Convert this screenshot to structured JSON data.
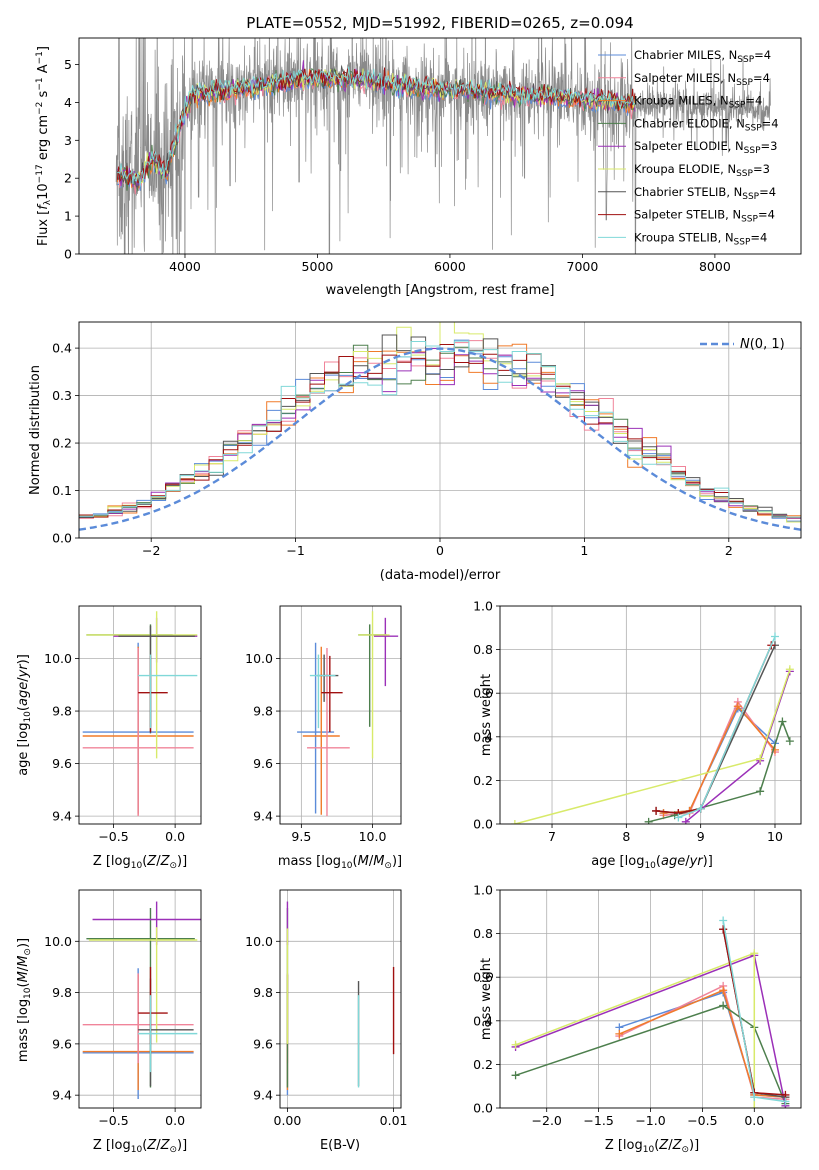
{
  "figure": {
    "title": "PLATE=0552, MJD=51992, FIBERID=0265, z=0.094"
  },
  "colors": {
    "Chabrier MILES": "#5b8bd9",
    "Salpeter MILES": "#f0849a",
    "Kroupa MILES": "#f07b2a",
    "Chabrier ELODIE": "#4d7f4d",
    "Salpeter ELODIE": "#9b30b8",
    "Kroupa ELODIE": "#d8ea6a",
    "Chabrier STELIB": "#555555",
    "Salpeter STELIB": "#a01010",
    "Kroupa STELIB": "#80d8d8"
  },
  "chart_data": [
    {
      "id": "spectrum",
      "type": "line",
      "xlabel": "wavelength [Angstrom, rest frame]",
      "ylabel": "Flux [f_λ 10^-17 erg cm^-2 s^-1 A^-1]",
      "xlim": [
        3200,
        8650
      ],
      "ylim": [
        0,
        5.7
      ],
      "xticks": [
        "4000",
        "5000",
        "6000",
        "7000",
        "8000"
      ],
      "yticks": [
        "0",
        "1",
        "2",
        "3",
        "4",
        "5"
      ],
      "grid": false,
      "legend_position": "right",
      "legend": [
        {
          "model": "Chabrier MILES",
          "text": "Chabrier MILES, N_SSP=4"
        },
        {
          "model": "Salpeter MILES",
          "text": "Salpeter MILES, N_SSP=4"
        },
        {
          "model": "Kroupa MILES",
          "text": "Kroupa MILES, N_SSP=4"
        },
        {
          "model": "Chabrier ELODIE",
          "text": "Chabrier ELODIE, N_SSP=4"
        },
        {
          "model": "Salpeter ELODIE",
          "text": "Salpeter ELODIE, N_SSP=3"
        },
        {
          "model": "Kroupa ELODIE",
          "text": "Kroupa ELODIE, N_SSP=3"
        },
        {
          "model": "Chabrier STELIB",
          "text": "Chabrier STELIB, N_SSP=4"
        },
        {
          "model": "Salpeter STELIB",
          "text": "Salpeter STELIB, N_SSP=4"
        },
        {
          "model": "Kroupa STELIB",
          "text": "Kroupa STELIB, N_SSP=4"
        }
      ],
      "continuum": [
        [
          3500,
          2.2
        ],
        [
          3650,
          2.0
        ],
        [
          3750,
          2.6
        ],
        [
          3850,
          2.2
        ],
        [
          3950,
          3.3
        ],
        [
          4050,
          4.2
        ],
        [
          4200,
          4.25
        ],
        [
          4400,
          4.35
        ],
        [
          4700,
          4.5
        ],
        [
          5000,
          4.65
        ],
        [
          5300,
          4.6
        ],
        [
          5600,
          4.45
        ],
        [
          5900,
          4.35
        ],
        [
          6200,
          4.3
        ],
        [
          6500,
          4.2
        ],
        [
          6800,
          4.15
        ],
        [
          7100,
          4.05
        ],
        [
          7400,
          3.95
        ],
        [
          7700,
          3.95
        ],
        [
          8000,
          3.85
        ],
        [
          8400,
          3.75
        ]
      ],
      "model_fill_end": 7400,
      "absorption_dips": [
        [
          3934,
          0.4
        ],
        [
          3969,
          0.6
        ],
        [
          4102,
          1.5
        ],
        [
          4340,
          1.8
        ],
        [
          4861,
          1.9
        ],
        [
          5090,
          0.0
        ],
        [
          5175,
          2.2
        ],
        [
          5890,
          2.3
        ],
        [
          6563,
          2.0
        ],
        [
          7180,
          0.9
        ],
        [
          7400,
          0.0
        ]
      ]
    },
    {
      "id": "residuals",
      "type": "histogram",
      "xlabel": "(data-model)/error",
      "ylabel": "Normed distribution",
      "xlim": [
        -2.5,
        2.5
      ],
      "ylim": [
        0,
        0.455
      ],
      "xticks": [
        "-2",
        "-1",
        "0",
        "1",
        "2"
      ],
      "yticks": [
        "0.0",
        "0.1",
        "0.2",
        "0.3",
        "0.4"
      ],
      "grid": true,
      "legend_position": "upper right",
      "reference_label": "N(0,1)",
      "bin_width": 0.1,
      "bin_range": [
        -2.5,
        2.5
      ]
    },
    {
      "id": "age-vs-Z",
      "type": "errorbar",
      "xlabel": "Z [log10(Z/Z☉)]",
      "ylabel": "age [log10(age/yr)]",
      "xlim": [
        -0.78,
        0.21
      ],
      "ylim": [
        9.37,
        10.2
      ],
      "xticks": [
        "-0.5",
        "0.0"
      ],
      "yticks": [
        "9.4",
        "9.6",
        "9.8",
        "10.0"
      ],
      "grid": true,
      "bars": [
        {
          "model": "Chabrier MILES",
          "x": -0.3,
          "xerr": [
            0.45,
            0.45
          ],
          "y": 9.72,
          "yerr": [
            0.31,
            0.34
          ]
        },
        {
          "model": "Kroupa MILES",
          "x": -0.3,
          "xerr": [
            0.45,
            0.45
          ],
          "y": 9.705,
          "yerr": [
            0.3,
            0.34
          ]
        },
        {
          "model": "Salpeter MILES",
          "x": -0.3,
          "xerr": [
            0.45,
            0.45
          ],
          "y": 9.66,
          "yerr": [
            0.26,
            0.38
          ]
        },
        {
          "model": "Chabrier ELODIE",
          "x": -0.2,
          "xerr": [
            0.52,
            0.18
          ],
          "y": 10.09,
          "yerr": [
            0.35,
            0.04
          ]
        },
        {
          "model": "Salpeter ELODIE",
          "x": -0.15,
          "xerr": [
            0.35,
            0.33
          ],
          "y": 10.085,
          "yerr": [
            0.1,
            0.07
          ]
        },
        {
          "model": "Kroupa ELODIE",
          "x": -0.15,
          "xerr": [
            0.57,
            0.33
          ],
          "y": 10.09,
          "yerr": [
            0.47,
            0.09
          ]
        },
        {
          "model": "Chabrier STELIB",
          "x": -0.2,
          "xerr": [
            0.26,
            0.36
          ],
          "y": 10.085,
          "yerr": [
            0.37,
            0.04
          ]
        },
        {
          "model": "Salpeter STELIB",
          "x": -0.2,
          "xerr": [
            0.1,
            0.14
          ],
          "y": 9.87,
          "yerr": [
            0.15,
            0.14
          ]
        },
        {
          "model": "Kroupa STELIB",
          "x": -0.2,
          "xerr": [
            0.1,
            0.38
          ],
          "y": 9.935,
          "yerr": [
            0.2,
            0.08
          ]
        }
      ]
    },
    {
      "id": "age-vs-mass",
      "type": "errorbar",
      "xlabel": "mass [log10(M/M☉)]",
      "ylabel": "",
      "xlim": [
        9.35,
        10.2
      ],
      "ylim": [
        9.37,
        10.2
      ],
      "xticks": [
        "9.5",
        "10.0"
      ],
      "yticks": [
        "9.4",
        "9.6",
        "9.8",
        "10.0"
      ],
      "grid": true,
      "bars": [
        {
          "model": "Chabrier MILES",
          "x": 9.6,
          "xerr": [
            0.13,
            0.13
          ],
          "y": 9.72,
          "yerr": [
            0.31,
            0.34
          ]
        },
        {
          "model": "Kroupa MILES",
          "x": 9.64,
          "xerr": [
            0.13,
            0.13
          ],
          "y": 9.705,
          "yerr": [
            0.3,
            0.34
          ]
        },
        {
          "model": "Salpeter MILES",
          "x": 9.68,
          "xerr": [
            0.14,
            0.16
          ],
          "y": 9.66,
          "yerr": [
            0.26,
            0.38
          ]
        },
        {
          "model": "Chabrier ELODIE",
          "x": 9.98,
          "xerr": [
            0.08,
            0.12
          ],
          "y": 10.09,
          "yerr": [
            0.35,
            0.04
          ]
        },
        {
          "model": "Salpeter ELODIE",
          "x": 10.09,
          "xerr": [
            0.08,
            0.09
          ],
          "y": 10.085,
          "yerr": [
            0.19,
            0.07
          ]
        },
        {
          "model": "Kroupa ELODIE",
          "x": 10.0,
          "xerr": [
            0.1,
            0.12
          ],
          "y": 10.09,
          "yerr": [
            0.47,
            0.09
          ]
        },
        {
          "model": "Chabrier STELIB",
          "x": 9.66,
          "xerr": [
            0.05,
            0.1
          ],
          "y": 9.935,
          "yerr": [
            0.1,
            0.08
          ]
        },
        {
          "model": "Salpeter STELIB",
          "x": 9.7,
          "xerr": [
            0.06,
            0.09
          ],
          "y": 9.87,
          "yerr": [
            0.15,
            0.14
          ]
        },
        {
          "model": "Kroupa STELIB",
          "x": 9.62,
          "xerr": [
            0.06,
            0.12
          ],
          "y": 9.935,
          "yerr": [
            0.2,
            0.08
          ]
        }
      ]
    },
    {
      "id": "weight-vs-age",
      "type": "line",
      "xlabel": "age [log10(age/yr)]",
      "ylabel": "mass weight",
      "xlim": [
        6.3,
        10.35
      ],
      "ylim": [
        0,
        1.0
      ],
      "xticks": [
        "7",
        "8",
        "9",
        "10"
      ],
      "yticks": [
        "0.0",
        "0.2",
        "0.4",
        "0.6",
        "0.8",
        "1.0"
      ],
      "grid": true,
      "series": [
        {
          "model": "Chabrier MILES",
          "x": [
            8.5,
            8.85,
            9.5,
            10.0
          ],
          "y": [
            0.05,
            0.06,
            0.53,
            0.37
          ]
        },
        {
          "model": "Salpeter MILES",
          "x": [
            8.5,
            8.85,
            9.5,
            10.0
          ],
          "y": [
            0.04,
            0.05,
            0.56,
            0.33
          ]
        },
        {
          "model": "Kroupa MILES",
          "x": [
            8.5,
            8.85,
            9.5,
            10.0
          ],
          "y": [
            0.05,
            0.06,
            0.54,
            0.34
          ]
        },
        {
          "model": "Chabrier ELODIE",
          "x": [
            8.3,
            8.65,
            9.8,
            10.1,
            10.2
          ],
          "y": [
            0.01,
            0.04,
            0.15,
            0.47,
            0.38
          ]
        },
        {
          "model": "Salpeter ELODIE",
          "x": [
            8.8,
            9.8,
            10.2
          ],
          "y": [
            0.01,
            0.29,
            0.7
          ]
        },
        {
          "model": "Kroupa ELODIE",
          "x": [
            6.5,
            9.8,
            10.2
          ],
          "y": [
            0.0,
            0.3,
            0.71
          ]
        },
        {
          "model": "Chabrier STELIB",
          "x": [
            8.4,
            8.7,
            9.0,
            10.0
          ],
          "y": [
            0.06,
            0.05,
            0.07,
            0.82
          ]
        },
        {
          "model": "Salpeter STELIB",
          "x": [
            8.4,
            8.7,
            9.0,
            9.95
          ],
          "y": [
            0.06,
            0.05,
            0.07,
            0.82
          ]
        },
        {
          "model": "Kroupa STELIB",
          "x": [
            8.7,
            9.0,
            10.0
          ],
          "y": [
            0.03,
            0.07,
            0.86
          ]
        }
      ]
    },
    {
      "id": "mass-vs-Z",
      "type": "errorbar",
      "xlabel": "Z [log10(Z/Z☉)]",
      "ylabel": "mass [log10(M/M☉)]",
      "xlim": [
        -0.78,
        0.21
      ],
      "ylim": [
        9.35,
        10.2
      ],
      "xticks": [
        "-0.5",
        "0.0"
      ],
      "yticks": [
        "9.4",
        "9.6",
        "9.8",
        "10.0"
      ],
      "grid": true,
      "bars": [
        {
          "model": "Chabrier MILES",
          "x": -0.3,
          "xerr": [
            0.45,
            0.45
          ],
          "y": 9.565,
          "yerr": [
            0.18,
            0.33
          ]
        },
        {
          "model": "Kroupa MILES",
          "x": -0.3,
          "xerr": [
            0.45,
            0.45
          ],
          "y": 9.57,
          "yerr": [
            0.15,
            0.3
          ]
        },
        {
          "model": "Salpeter MILES",
          "x": -0.3,
          "xerr": [
            0.45,
            0.45
          ],
          "y": 9.675,
          "yerr": [
            0.15,
            0.2
          ]
        },
        {
          "model": "Chabrier ELODIE",
          "x": -0.2,
          "xerr": [
            0.52,
            0.36
          ],
          "y": 10.01,
          "yerr": [
            0.58,
            0.12
          ]
        },
        {
          "model": "Salpeter ELODIE",
          "x": -0.15,
          "xerr": [
            0.52,
            0.38
          ],
          "y": 10.085,
          "yerr": [
            0.1,
            0.07
          ]
        },
        {
          "model": "Kroupa ELODIE",
          "x": -0.15,
          "xerr": [
            0.55,
            0.33
          ],
          "y": 10.005,
          "yerr": [
            0.4,
            0.05
          ]
        },
        {
          "model": "Chabrier STELIB",
          "x": -0.2,
          "xerr": [
            0.1,
            0.35
          ],
          "y": 9.655,
          "yerr": [
            0.22,
            0.2
          ]
        },
        {
          "model": "Salpeter STELIB",
          "x": -0.2,
          "xerr": [
            0.1,
            0.14
          ],
          "y": 9.72,
          "yerr": [
            0.12,
            0.18
          ]
        },
        {
          "model": "Kroupa STELIB",
          "x": -0.2,
          "xerr": [
            0.1,
            0.38
          ],
          "y": 9.64,
          "yerr": [
            0.15,
            0.15
          ]
        }
      ]
    },
    {
      "id": "mass-vs-ebv",
      "type": "errorbar",
      "xlabel": "E(B-V)",
      "ylabel": "",
      "xlim": [
        -0.0007,
        0.0107
      ],
      "ylim": [
        9.35,
        10.2
      ],
      "xticks": [
        "0.00",
        "0.01"
      ],
      "yticks": [
        "9.4",
        "9.6",
        "9.8",
        "10.0"
      ],
      "grid": true,
      "bars": [
        {
          "model": "Chabrier MILES",
          "x": 0.0,
          "y": 9.57,
          "yerr": [
            0.17,
            0.3
          ]
        },
        {
          "model": "Salpeter MILES",
          "x": 0.0,
          "y": 9.675,
          "yerr": [
            0.15,
            0.2
          ]
        },
        {
          "model": "Kroupa MILES",
          "x": 0.0,
          "y": 9.57,
          "yerr": [
            0.15,
            0.3
          ]
        },
        {
          "model": "Chabrier ELODIE",
          "x": 0.0,
          "y": 10.01,
          "yerr": [
            0.58,
            0.12
          ]
        },
        {
          "model": "Salpeter ELODIE",
          "x": 0.0,
          "y": 10.085,
          "yerr": [
            0.1,
            0.07
          ]
        },
        {
          "model": "Kroupa ELODIE",
          "x": 0.0,
          "y": 10.0,
          "yerr": [
            0.4,
            0.05
          ]
        },
        {
          "model": "Chabrier STELIB",
          "x": 0.0067,
          "y": 9.655,
          "yerr": [
            0.22,
            0.19
          ]
        },
        {
          "model": "Salpeter STELIB",
          "x": 0.01,
          "y": 9.72,
          "yerr": [
            0.16,
            0.18
          ]
        },
        {
          "model": "Kroupa STELIB",
          "x": 0.0067,
          "y": 9.64,
          "yerr": [
            0.21,
            0.15
          ]
        }
      ]
    },
    {
      "id": "weight-vs-Z",
      "type": "line",
      "xlabel": "Z [log10(Z/Z☉)]",
      "ylabel": "mass weight",
      "xlim": [
        -2.45,
        0.45
      ],
      "ylim": [
        0,
        1.0
      ],
      "xticks": [
        "-2.0",
        "-1.5",
        "-1.0",
        "-0.5",
        "0.0"
      ],
      "yticks": [
        "0.0",
        "0.2",
        "0.4",
        "0.6",
        "0.8",
        "1.0"
      ],
      "grid": true,
      "series": [
        {
          "model": "Chabrier MILES",
          "x": [
            -1.3,
            -0.3,
            0.0,
            0.3
          ],
          "y": [
            0.37,
            0.53,
            0.06,
            0.05
          ]
        },
        {
          "model": "Salpeter MILES",
          "x": [
            -1.3,
            -0.3,
            0.0,
            0.3
          ],
          "y": [
            0.33,
            0.56,
            0.05,
            0.04
          ]
        },
        {
          "model": "Kroupa MILES",
          "x": [
            -1.3,
            -0.3,
            0.0,
            0.3
          ],
          "y": [
            0.34,
            0.54,
            0.06,
            0.05
          ]
        },
        {
          "model": "Chabrier ELODIE",
          "x": [
            -2.3,
            -0.3,
            0.0,
            0.3
          ],
          "y": [
            0.15,
            0.47,
            0.37,
            0.02
          ]
        },
        {
          "model": "Salpeter ELODIE",
          "x": [
            -2.3,
            0.0,
            0.3
          ],
          "y": [
            0.28,
            0.7,
            0.01
          ]
        },
        {
          "model": "Kroupa ELODIE",
          "x": [
            -2.3,
            0.0,
            0.0
          ],
          "y": [
            0.29,
            0.71,
            0.0
          ]
        },
        {
          "model": "Chabrier STELIB",
          "x": [
            -0.3,
            0.0,
            0.3
          ],
          "y": [
            0.82,
            0.07,
            0.05
          ]
        },
        {
          "model": "Salpeter STELIB",
          "x": [
            -0.3,
            0.0,
            0.3
          ],
          "y": [
            0.82,
            0.07,
            0.06
          ]
        },
        {
          "model": "Kroupa STELIB",
          "x": [
            -0.3,
            0.0,
            0.3
          ],
          "y": [
            0.86,
            0.05,
            0.03
          ]
        }
      ]
    }
  ]
}
